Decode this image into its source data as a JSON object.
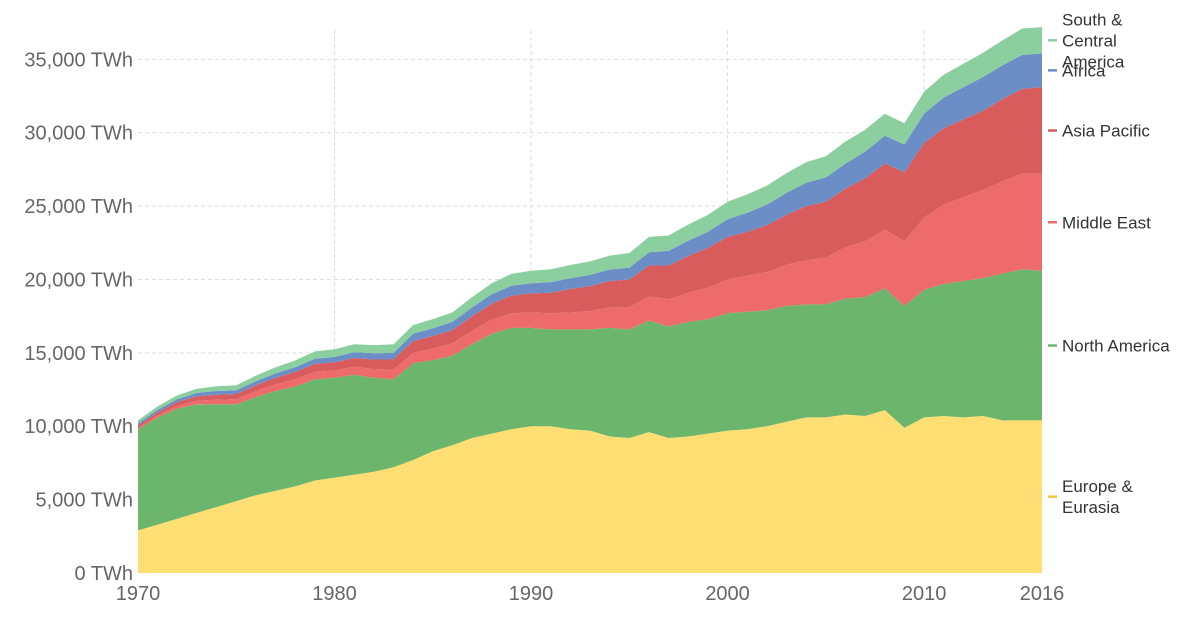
{
  "chart_data": {
    "type": "area",
    "stacked": true,
    "title": "",
    "xlabel": "",
    "ylabel": "",
    "x": [
      1970,
      1971,
      1972,
      1973,
      1974,
      1975,
      1976,
      1977,
      1978,
      1979,
      1980,
      1981,
      1982,
      1983,
      1984,
      1985,
      1986,
      1987,
      1988,
      1989,
      1990,
      1991,
      1992,
      1993,
      1994,
      1995,
      1996,
      1997,
      1998,
      1999,
      2000,
      2001,
      2002,
      2003,
      2004,
      2005,
      2006,
      2007,
      2008,
      2009,
      2010,
      2011,
      2012,
      2013,
      2014,
      2015,
      2016
    ],
    "xlim": [
      1970,
      2016
    ],
    "ylim": [
      0,
      37000
    ],
    "grid": true,
    "legend_placement": "right",
    "x_ticks": [
      {
        "value": 1970,
        "label": "1970"
      },
      {
        "value": 1980,
        "label": "1980"
      },
      {
        "value": 1990,
        "label": "1990"
      },
      {
        "value": 2000,
        "label": "2000"
      },
      {
        "value": 2010,
        "label": "2010"
      },
      {
        "value": 2016,
        "label": "2016"
      }
    ],
    "y_ticks": [
      {
        "value": 0,
        "label": "0 TWh"
      },
      {
        "value": 5000,
        "label": "5,000 TWh"
      },
      {
        "value": 10000,
        "label": "10,000 TWh"
      },
      {
        "value": 15000,
        "label": "15,000 TWh"
      },
      {
        "value": 20000,
        "label": "20,000 TWh"
      },
      {
        "value": 25000,
        "label": "25,000 TWh"
      },
      {
        "value": 30000,
        "label": "30,000 TWh"
      },
      {
        "value": 35000,
        "label": "35,000 TWh"
      }
    ],
    "series": [
      {
        "name": "Europe & Eurasia",
        "legend_lines": [
          "Europe &",
          "Eurasia"
        ],
        "color": "#ffdf73",
        "values": [
          2900,
          3300,
          3700,
          4100,
          4500,
          4900,
          5300,
          5600,
          5900,
          6300,
          6500,
          6700,
          6900,
          7200,
          7700,
          8300,
          8700,
          9200,
          9500,
          9800,
          10000,
          10000,
          9800,
          9700,
          9300,
          9200,
          9600,
          9200,
          9300,
          9500,
          9700,
          9800,
          10000,
          10300,
          10600,
          10600,
          10800,
          10700,
          11100,
          9900,
          10600,
          10700,
          10600,
          10700,
          10400,
          10400,
          10400
        ]
      },
      {
        "name": "North America",
        "color": "#6cb56c",
        "values": [
          6900,
          7300,
          7500,
          7400,
          7000,
          6600,
          6700,
          6800,
          6800,
          6900,
          6800,
          6800,
          6400,
          6000,
          6600,
          6200,
          6100,
          6400,
          6800,
          6900,
          6700,
          6600,
          6800,
          6900,
          7400,
          7400,
          7600,
          7600,
          7800,
          7800,
          8000,
          8000,
          7900,
          7900,
          7700,
          7700,
          7900,
          8100,
          8300,
          8300,
          8700,
          9000,
          9300,
          9400,
          10000,
          10300,
          10200
        ]
      },
      {
        "name": "Middle East",
        "color": "#ee6b6b",
        "values": [
          100,
          150,
          200,
          250,
          300,
          350,
          400,
          450,
          500,
          500,
          500,
          550,
          600,
          650,
          700,
          800,
          850,
          900,
          950,
          1000,
          1050,
          1100,
          1150,
          1250,
          1400,
          1500,
          1650,
          1850,
          2000,
          2150,
          2300,
          2450,
          2600,
          2800,
          3000,
          3200,
          3500,
          3800,
          4000,
          4400,
          4900,
          5400,
          5700,
          6000,
          6300,
          6500,
          6600
        ]
      },
      {
        "name": "Asia Pacific",
        "color": "#d95c5c",
        "values": [
          150,
          200,
          250,
          300,
          350,
          350,
          400,
          450,
          500,
          550,
          550,
          600,
          650,
          700,
          800,
          850,
          900,
          1000,
          1100,
          1200,
          1300,
          1400,
          1600,
          1700,
          1800,
          1900,
          2100,
          2300,
          2500,
          2700,
          2900,
          3000,
          3200,
          3400,
          3700,
          3800,
          4000,
          4300,
          4500,
          4700,
          5100,
          5200,
          5300,
          5400,
          5600,
          5800,
          5900
        ]
      },
      {
        "name": "Africa",
        "color": "#6b8ec7",
        "values": [
          150,
          180,
          200,
          220,
          250,
          250,
          270,
          300,
          320,
          350,
          370,
          400,
          420,
          450,
          500,
          530,
          560,
          600,
          650,
          680,
          700,
          720,
          740,
          760,
          780,
          800,
          900,
          1000,
          1050,
          1100,
          1200,
          1300,
          1400,
          1500,
          1600,
          1650,
          1700,
          1800,
          1900,
          1900,
          2000,
          2100,
          2200,
          2300,
          2300,
          2300,
          2300
        ]
      },
      {
        "name": "South & Central America",
        "legend_lines": [
          "South &",
          "Central",
          "America"
        ],
        "color": "#8ccf9f",
        "values": [
          200,
          230,
          260,
          290,
          320,
          350,
          380,
          420,
          460,
          500,
          520,
          540,
          560,
          580,
          600,
          620,
          650,
          700,
          750,
          800,
          850,
          880,
          900,
          920,
          950,
          1000,
          1050,
          1050,
          1100,
          1150,
          1200,
          1250,
          1300,
          1350,
          1400,
          1450,
          1500,
          1500,
          1500,
          1450,
          1500,
          1550,
          1600,
          1650,
          1700,
          1800,
          1800
        ]
      }
    ]
  }
}
